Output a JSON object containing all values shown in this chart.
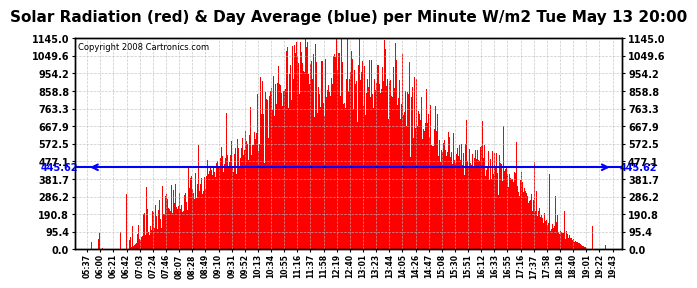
{
  "title": "Solar Radiation (red) & Day Average (blue) per Minute W/m2 Tue May 13 20:00",
  "copyright_text": "Copyright 2008 Cartronics.com",
  "ymax": 1145.0,
  "ymin": 0.0,
  "yticks": [
    0.0,
    95.4,
    190.8,
    286.2,
    381.7,
    477.1,
    572.5,
    667.9,
    763.3,
    858.8,
    954.2,
    1049.6,
    1145.0
  ],
  "avg_value": 445.62,
  "bar_color": "#FF0000",
  "avg_line_color": "#0000FF",
  "background_color": "#FFFFFF",
  "grid_color": "#BBBBBB",
  "title_fontsize": 11,
  "tick_labels": [
    "05:37",
    "06:00",
    "06:21",
    "06:42",
    "07:03",
    "07:24",
    "07:46",
    "08:07",
    "08:28",
    "08:49",
    "09:10",
    "09:31",
    "09:52",
    "10:13",
    "10:34",
    "10:55",
    "11:16",
    "11:37",
    "11:58",
    "12:19",
    "12:40",
    "13:01",
    "13:23",
    "13:44",
    "14:05",
    "14:26",
    "14:47",
    "15:08",
    "15:30",
    "15:51",
    "16:12",
    "16:33",
    "16:55",
    "17:16",
    "17:37",
    "17:58",
    "18:19",
    "18:40",
    "19:01",
    "19:22",
    "19:43"
  ]
}
